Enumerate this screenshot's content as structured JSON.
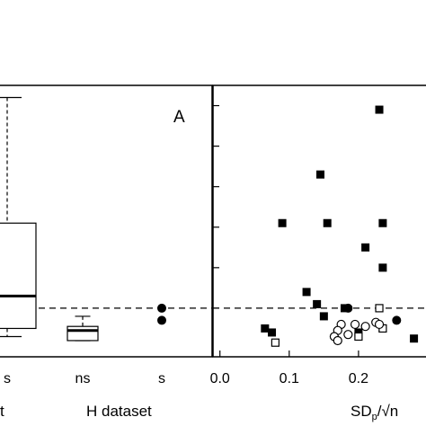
{
  "chart_data": [
    {
      "type": "box",
      "panel_label": "A",
      "categories": [
        "s",
        "ns",
        "s"
      ],
      "group_labels": [
        "t",
        "H dataset"
      ],
      "reference_line": 0.0,
      "boxes": [
        {
          "category": 0,
          "whisker_low": -0.07,
          "q1": -0.05,
          "median": 0.03,
          "q3": 0.21,
          "whisker_high": 0.52
        },
        {
          "category": 1,
          "whisker_low": -0.08,
          "q1": -0.08,
          "median": -0.055,
          "q3": -0.045,
          "whisker_high": -0.02
        }
      ],
      "points": [
        {
          "category": 2,
          "y": 0.0,
          "marker": "filled-circle"
        },
        {
          "category": 2,
          "y": -0.03,
          "marker": "filled-circle"
        }
      ]
    },
    {
      "type": "scatter",
      "xlabel": "SD",
      "xlabel_sub": "p",
      "xlabel_tail": "/√n",
      "xlim": [
        -0.01,
        0.3
      ],
      "xticks": [
        "0.0",
        "0.1",
        "0.2"
      ],
      "reference_line": 0.0,
      "series": [
        {
          "marker": "filled-square",
          "points": [
            [
              0.23,
              0.49
            ],
            [
              0.145,
              0.33
            ],
            [
              0.09,
              0.21
            ],
            [
              0.155,
              0.21
            ],
            [
              0.235,
              0.21
            ],
            [
              0.21,
              0.15
            ],
            [
              0.235,
              0.1
            ],
            [
              0.125,
              0.04
            ],
            [
              0.14,
              0.01
            ],
            [
              0.18,
              0.0
            ],
            [
              0.15,
              -0.02
            ],
            [
              0.065,
              -0.05
            ],
            [
              0.075,
              -0.06
            ],
            [
              0.2,
              -0.06
            ],
            [
              0.235,
              -0.05
            ],
            [
              0.28,
              -0.075
            ]
          ]
        },
        {
          "marker": "open-square",
          "points": [
            [
              0.23,
              0.0
            ],
            [
              0.08,
              -0.085
            ],
            [
              0.235,
              -0.05
            ],
            [
              0.2,
              -0.07
            ]
          ]
        },
        {
          "marker": "open-circle",
          "points": [
            [
              0.175,
              -0.04
            ],
            [
              0.195,
              -0.04
            ],
            [
              0.21,
              -0.045
            ],
            [
              0.225,
              -0.035
            ],
            [
              0.23,
              -0.04
            ],
            [
              0.17,
              -0.055
            ],
            [
              0.165,
              -0.07
            ],
            [
              0.17,
              -0.08
            ],
            [
              0.185,
              -0.065
            ]
          ]
        },
        {
          "marker": "filled-circle",
          "points": [
            [
              0.185,
              0.0
            ],
            [
              0.255,
              -0.03
            ]
          ]
        }
      ]
    }
  ]
}
